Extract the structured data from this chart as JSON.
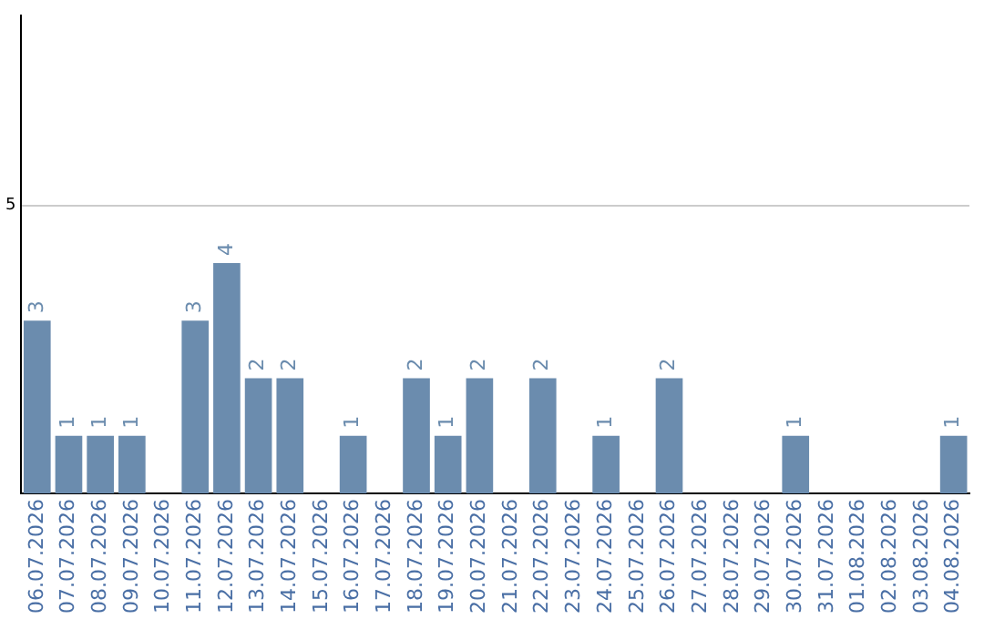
{
  "chart_data": {
    "type": "bar",
    "categories": [
      "06.07.2026",
      "07.07.2026",
      "08.07.2026",
      "09.07.2026",
      "10.07.2026",
      "11.07.2026",
      "12.07.2026",
      "13.07.2026",
      "14.07.2026",
      "15.07.2026",
      "16.07.2026",
      "17.07.2026",
      "18.07.2026",
      "19.07.2026",
      "20.07.2026",
      "21.07.2026",
      "22.07.2026",
      "23.07.2026",
      "24.07.2026",
      "25.07.2026",
      "26.07.2026",
      "27.07.2026",
      "28.07.2026",
      "29.07.2026",
      "30.07.2026",
      "31.07.2026",
      "01.08.2026",
      "02.08.2026",
      "03.08.2026",
      "04.08.2026"
    ],
    "values": [
      3,
      1,
      1,
      1,
      0,
      3,
      4,
      2,
      2,
      0,
      1,
      0,
      2,
      1,
      2,
      0,
      2,
      0,
      1,
      0,
      2,
      0,
      0,
      0,
      1,
      0,
      0,
      0,
      0,
      1
    ],
    "value_labels": [
      "3",
      "1",
      "1",
      "1",
      null,
      "3",
      "4",
      "2",
      "2",
      null,
      "1",
      null,
      "2",
      "1",
      "2",
      null,
      "2",
      null,
      "1",
      null,
      "2",
      null,
      null,
      null,
      "1",
      null,
      null,
      null,
      null,
      "1"
    ],
    "color": "#6b8cae",
    "ylim": [
      0,
      8.3
    ],
    "yticks": [
      5
    ],
    "grid": "y",
    "legend": false
  }
}
